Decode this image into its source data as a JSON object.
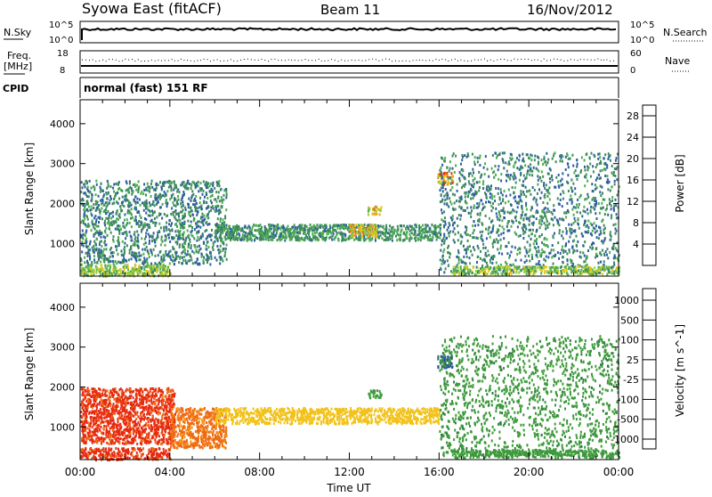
{
  "header": {
    "station": "Syowa East (fitACF)",
    "beam": "Beam 11",
    "date": "16/Nov/2012"
  },
  "top_panels": {
    "nsky": {
      "label": "N.Sky",
      "left_ticks": [
        "10^5",
        "10^0"
      ],
      "right_label": "N.Search",
      "right_ticks": [
        "10^5",
        "10^0"
      ]
    },
    "freq": {
      "label_line1": "Freq.",
      "label_line2": "[MHz]",
      "left_ticks": [
        "18",
        "8"
      ],
      "right_label": "Nave",
      "right_ticks": [
        "60",
        "0"
      ]
    },
    "cpid": {
      "label": "CPID",
      "text": "normal (fast) 151 RF"
    }
  },
  "chart_data": [
    {
      "type": "heatmap",
      "title": "",
      "xlabel": "Time UT",
      "ylabel": "Slant Range [km]",
      "xticks": [
        "00:00",
        "04:00",
        "08:00",
        "12:00",
        "16:00",
        "20:00",
        "00:00"
      ],
      "xlim_hours": [
        0,
        24
      ],
      "yticks": [
        1000,
        2000,
        3000,
        4000
      ],
      "ylim": [
        180,
        4600
      ],
      "colorbar": {
        "label": "Power [dB]",
        "ticks": [
          4,
          8,
          12,
          16,
          20,
          24,
          28
        ],
        "range": [
          0,
          30
        ],
        "colors": [
          "#0000ff",
          "#1a46b0",
          "#2d5f9e",
          "#3f8a5c",
          "#4caf50",
          "#9acd32",
          "#e6c619",
          "#f4a020",
          "#f07018",
          "#e53a14",
          "#e00000"
        ]
      },
      "features": [
        {
          "desc": "near-range echoes 00:00-04:00",
          "time": [
            0.0,
            4.0
          ],
          "range_km": [
            200,
            500
          ],
          "value": 14
        },
        {
          "desc": "scattered echoes 00:00-06:00",
          "time": [
            0.0,
            6.5
          ],
          "range_km": [
            500,
            2600
          ],
          "value": 9
        },
        {
          "desc": "main band 06:00-16:00",
          "time": [
            6.0,
            16.0
          ],
          "range_km": [
            1100,
            1500
          ],
          "value": 10
        },
        {
          "desc": "enhanced patch 12:00",
          "time": [
            12.0,
            13.2
          ],
          "range_km": [
            1200,
            1500
          ],
          "value": 18
        },
        {
          "desc": "patch 13:00",
          "time": [
            12.8,
            13.4
          ],
          "range_km": [
            1750,
            1950
          ],
          "value": 18
        },
        {
          "desc": "patch 16:00",
          "time": [
            15.9,
            16.6
          ],
          "range_km": [
            2500,
            2800
          ],
          "value": 22
        },
        {
          "desc": "evening echoes 16:00-24:00",
          "time": [
            16.0,
            24.0
          ],
          "range_km": [
            300,
            3300
          ],
          "value": 9
        },
        {
          "desc": "near-range 16:30-24:00",
          "time": [
            16.5,
            24.0
          ],
          "range_km": [
            250,
            450
          ],
          "value": 14
        }
      ]
    },
    {
      "type": "heatmap",
      "title": "",
      "xlabel": "Time UT",
      "ylabel": "Slant Range [km]",
      "xticks": [
        "00:00",
        "04:00",
        "08:00",
        "12:00",
        "16:00",
        "20:00",
        "00:00"
      ],
      "xlim_hours": [
        0,
        24
      ],
      "yticks": [
        1000,
        2000,
        3000,
        4000
      ],
      "ylim": [
        180,
        4600
      ],
      "colorbar": {
        "label": "Velocity [m s^-1]",
        "ticks": [
          "1000",
          "500",
          "100",
          "25",
          "-25",
          "-100",
          "-500",
          "-1000"
        ],
        "colors": [
          "#0a2fb0",
          "#2a55a0",
          "#2f7a4a",
          "#3d9a3a",
          "#7fcf3a",
          "#c8c8c8",
          "#f2c21a",
          "#f59a18",
          "#ef6a14",
          "#e62a10",
          "#e00000"
        ]
      },
      "features": [
        {
          "desc": "near-range 00:00-04:00",
          "time": [
            0.0,
            4.0
          ],
          "range_km": [
            200,
            500
          ],
          "value": -300
        },
        {
          "desc": "echoes 00:00-04:00",
          "time": [
            0.0,
            4.2
          ],
          "range_km": [
            600,
            2000
          ],
          "value": -300
        },
        {
          "desc": "echoes 04:00-06:30",
          "time": [
            4.0,
            6.5
          ],
          "range_km": [
            500,
            1500
          ],
          "value": -120
        },
        {
          "desc": "main band 06:00-16:00",
          "time": [
            6.0,
            16.0
          ],
          "range_km": [
            1100,
            1500
          ],
          "value": 0
        },
        {
          "desc": "patch 13:00",
          "time": [
            12.8,
            13.4
          ],
          "range_km": [
            1750,
            1950
          ],
          "value": 150
        },
        {
          "desc": "patch 16:00",
          "time": [
            15.9,
            16.6
          ],
          "range_km": [
            2500,
            2800
          ],
          "value": 600
        },
        {
          "desc": "evening echoes 16:00-24:00",
          "time": [
            16.0,
            24.0
          ],
          "range_km": [
            300,
            3300
          ],
          "value": 200
        },
        {
          "desc": "near-range 16:30-24:00",
          "time": [
            16.5,
            24.0
          ],
          "range_km": [
            250,
            450
          ],
          "value": 150
        }
      ]
    }
  ]
}
